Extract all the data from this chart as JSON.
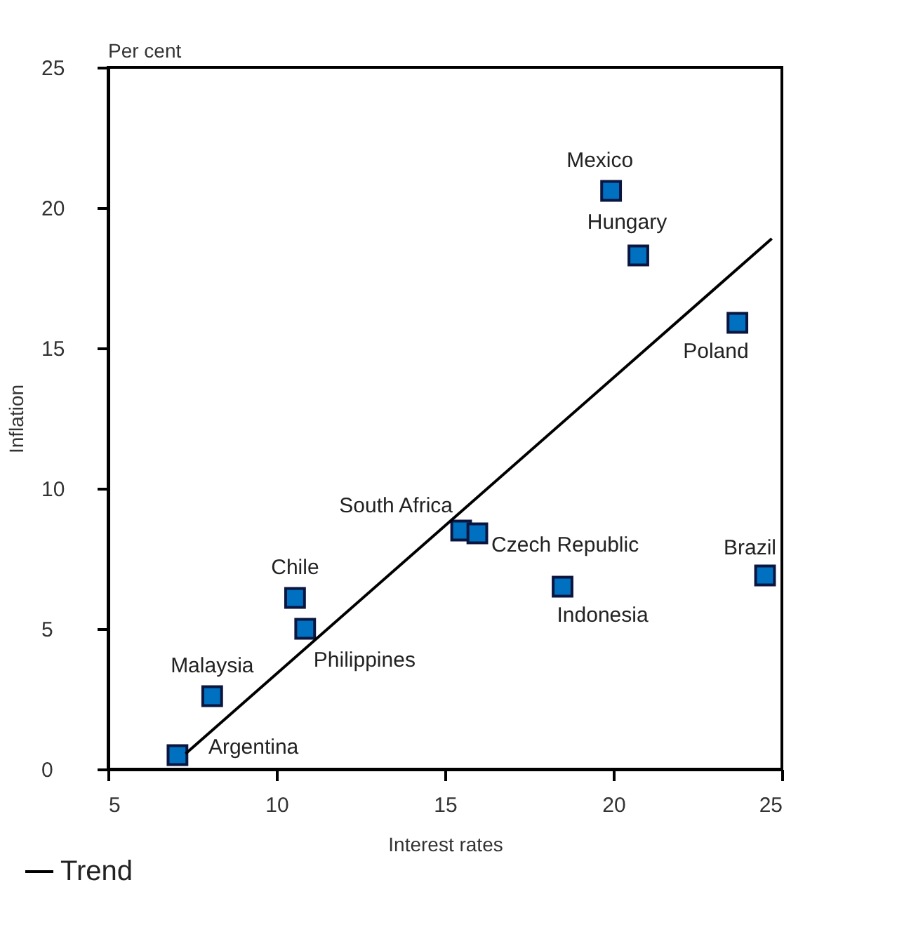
{
  "chart_data": {
    "type": "scatter",
    "xlabel": "Interest rates",
    "ylabel": "Inflation",
    "xlim": [
      5,
      25
    ],
    "ylim": [
      0,
      25
    ],
    "xticks": [
      5,
      10,
      15,
      20,
      25
    ],
    "yticks": [
      0,
      5,
      10,
      15,
      20,
      25
    ],
    "grid": false,
    "legend": "bottom left",
    "series": [
      {
        "type": "scatter",
        "marker": "square",
        "color": "#0070c0",
        "x": [
          7.06,
          8.09,
          10.55,
          10.85,
          15.48,
          15.96,
          18.49,
          19.93,
          20.74,
          23.68,
          24.5
        ],
        "values": [
          0.5,
          2.6,
          6.1,
          5.0,
          8.5,
          8.4,
          6.5,
          20.6,
          18.3,
          15.9,
          6.9
        ]
      },
      {
        "type": "line",
        "name": "Trend",
        "color": "#000000",
        "x": [
          7.3,
          24.7
        ],
        "values": [
          0.55,
          18.9
        ]
      }
    ],
    "annotations": [
      "Per cent",
      {
        "text": "Argentina",
        "x": 7.06,
        "y": 0.5
      },
      {
        "text": "Malaysia",
        "x": 8.09,
        "y": 2.6
      },
      {
        "text": "Chile",
        "x": 10.55,
        "y": 6.1
      },
      {
        "text": "Philippines",
        "x": 10.85,
        "y": 5.0
      },
      {
        "text": "South Africa",
        "x": 15.48,
        "y": 8.5
      },
      {
        "text": "Czech Republic",
        "x": 15.96,
        "y": 8.4
      },
      {
        "text": "Indonesia",
        "x": 18.49,
        "y": 6.5
      },
      {
        "text": "Mexico",
        "x": 19.93,
        "y": 20.6
      },
      {
        "text": "Hungary",
        "x": 20.74,
        "y": 18.3
      },
      {
        "text": "Poland",
        "x": 23.68,
        "y": 15.9
      },
      {
        "text": "Brazil",
        "x": 24.5,
        "y": 6.9
      }
    ]
  }
}
